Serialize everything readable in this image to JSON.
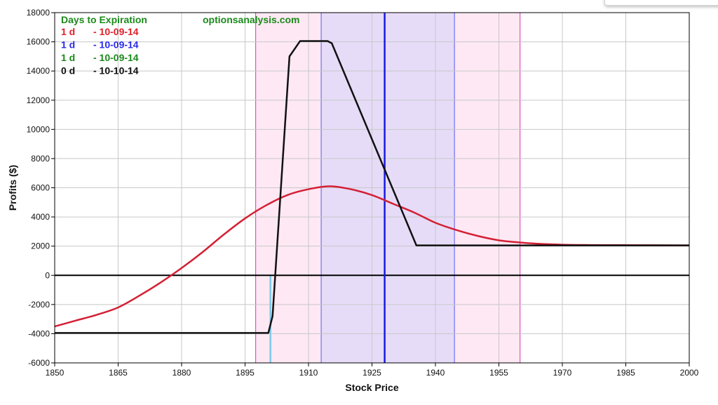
{
  "chart_data": {
    "type": "line",
    "xlabel": "Stock Price",
    "ylabel": "Profits ($)",
    "xlim": [
      1850,
      2000
    ],
    "ylim": [
      -6000,
      18000
    ],
    "x_ticks": [
      "1850",
      "1865",
      "1880",
      "1895",
      "1910",
      "1925",
      "1940",
      "1955",
      "1970",
      "1985",
      "2000"
    ],
    "y_ticks": [
      "-6000",
      "-4000",
      "-2000",
      "0",
      "2000",
      "4000",
      "6000",
      "8000",
      "10000",
      "12000",
      "14000",
      "16000",
      "18000"
    ],
    "grid": true,
    "legend_position": "top-left",
    "legend_header": "Days to Expiration",
    "watermark": "optionsanalysis.com",
    "legend": [
      {
        "days": "1 d",
        "date": "- 10-09-14",
        "color": "#e0202a"
      },
      {
        "days": "1 d",
        "date": "- 10-09-14",
        "color": "#2a2ae8"
      },
      {
        "days": "1 d",
        "date": "- 10-09-14",
        "color": "#1a8a1a"
      },
      {
        "days": "0 d",
        "date": "- 10-10-14",
        "color": "#111111"
      }
    ],
    "bands": [
      {
        "from": 1897.5,
        "to": 1960.0,
        "color": "#fde8f3",
        "edge_color": "#e050c0"
      },
      {
        "from": 1913.0,
        "to": 1944.5,
        "color": "#e6dcf8",
        "edge_color": "#7070f0"
      }
    ],
    "current_price_line": {
      "x": 1928.0,
      "color": "#1a1ae0"
    },
    "breakeven_marker": {
      "x": 1901.0,
      "color": "#80c8e8"
    },
    "zero_line": {
      "y": 0,
      "color": "#000000"
    },
    "series": [
      {
        "name": "1 d - 10-09-14",
        "color": "#d42035",
        "x": [
          1850,
          1855,
          1860,
          1865,
          1870,
          1875,
          1880,
          1885,
          1890,
          1895,
          1900,
          1905,
          1910,
          1915,
          1920,
          1925,
          1930,
          1935,
          1940,
          1945,
          1950,
          1955,
          1960,
          1965,
          1970,
          1975,
          1980,
          1990,
          2000
        ],
        "y": [
          -3500,
          -3100,
          -2700,
          -2200,
          -1400,
          -500,
          500,
          1600,
          2800,
          3900,
          4800,
          5500,
          5900,
          6100,
          5900,
          5500,
          4900,
          4300,
          3600,
          3100,
          2700,
          2400,
          2250,
          2150,
          2100,
          2080,
          2070,
          2060,
          2050
        ]
      },
      {
        "name": "0 d - 10-10-14",
        "color": "#111111",
        "x": [
          1850,
          1900.5,
          1901.5,
          1905.5,
          1908,
          1914.5,
          1915.5,
          1935.5,
          2000
        ],
        "y": [
          -3950,
          -3950,
          -2800,
          15000,
          16050,
          16050,
          15900,
          2050,
          2050
        ]
      }
    ]
  }
}
